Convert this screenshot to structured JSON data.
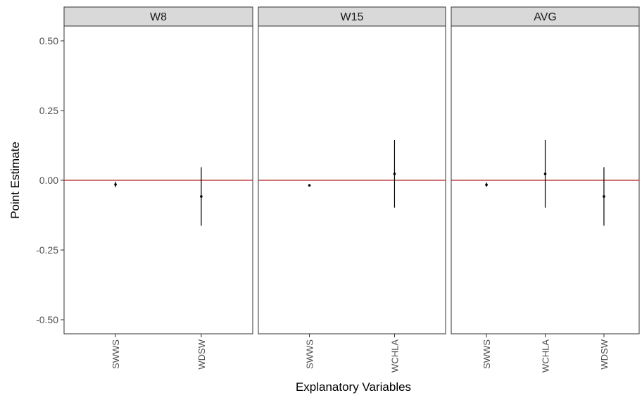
{
  "chart_data": {
    "type": "scatter",
    "xlabel": "Explanatory Variables",
    "ylabel": "Point Estimate",
    "ylim": [
      -0.55,
      0.55
    ],
    "y_ticks": [
      {
        "value": 0.5,
        "label": "0.50"
      },
      {
        "value": 0.25,
        "label": "0.25"
      },
      {
        "value": 0.0,
        "label": "0.00"
      },
      {
        "value": -0.25,
        "label": "-0.25"
      },
      {
        "value": -0.5,
        "label": "-0.50"
      }
    ],
    "reference_line": {
      "y": 0,
      "color": "#b22222"
    },
    "grid": false,
    "facets": [
      {
        "title": "W8",
        "categories": [
          "SWWS",
          "WDSW"
        ],
        "points": [
          {
            "x": "SWWS",
            "estimate": -0.015,
            "lower": -0.025,
            "upper": -0.005
          },
          {
            "x": "WDSW",
            "estimate": -0.058,
            "lower": -0.163,
            "upper": 0.047
          }
        ]
      },
      {
        "title": "W15",
        "categories": [
          "SWWS",
          "WCHLA"
        ],
        "points": [
          {
            "x": "SWWS",
            "estimate": -0.018,
            "lower": -0.022,
            "upper": -0.014
          },
          {
            "x": "WCHLA",
            "estimate": 0.023,
            "lower": -0.098,
            "upper": 0.144
          }
        ]
      },
      {
        "title": "AVG",
        "categories": [
          "SWWS",
          "WCHLA",
          "WDSW"
        ],
        "points": [
          {
            "x": "SWWS",
            "estimate": -0.016,
            "lower": -0.024,
            "upper": -0.008
          },
          {
            "x": "WCHLA",
            "estimate": 0.023,
            "lower": -0.098,
            "upper": 0.144
          },
          {
            "x": "WDSW",
            "estimate": -0.058,
            "lower": -0.163,
            "upper": 0.047
          }
        ]
      }
    ]
  }
}
